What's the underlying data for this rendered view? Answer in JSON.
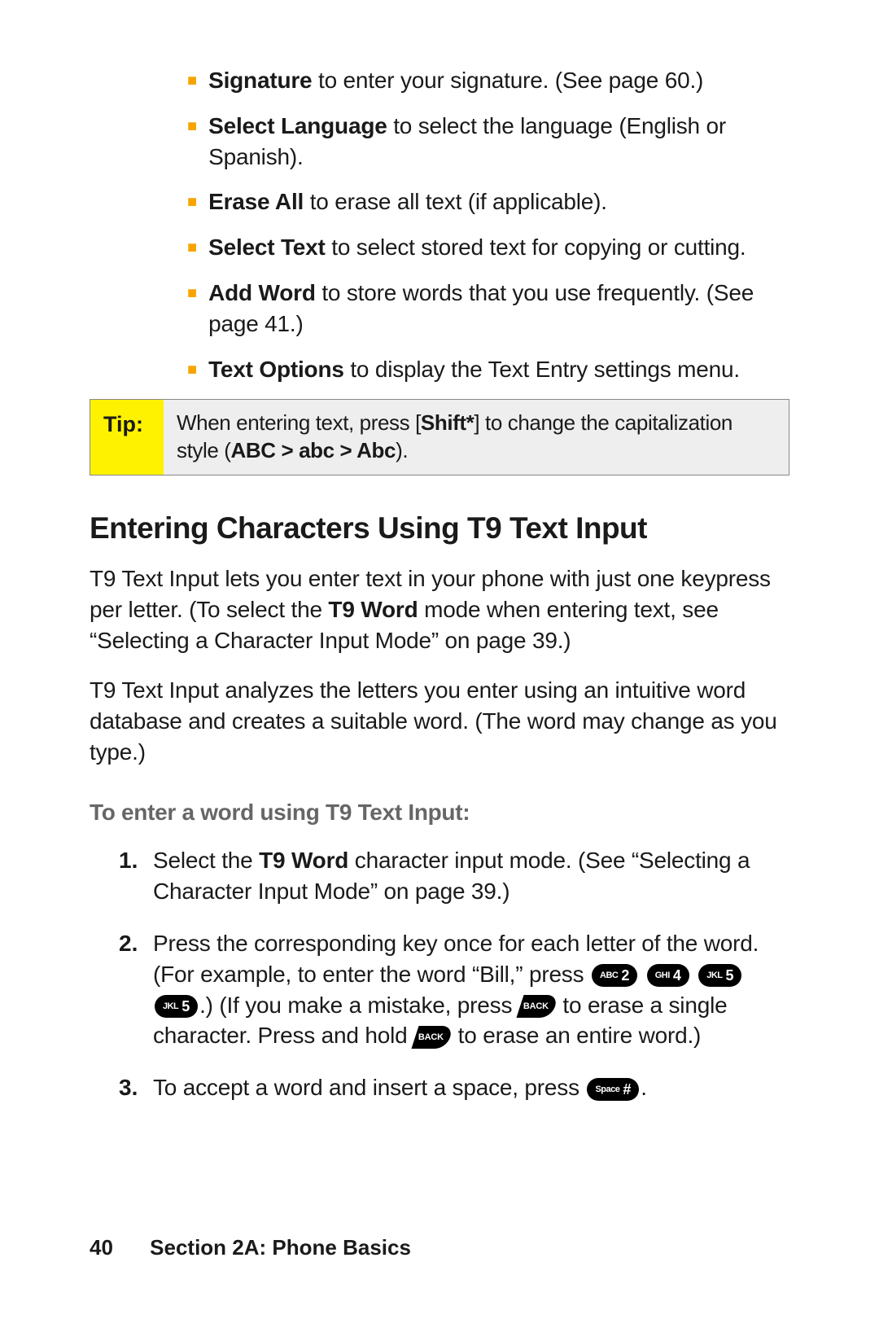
{
  "bullets": [
    {
      "bold": "Signature",
      "rest": " to enter your signature. (See page 60.)"
    },
    {
      "bold": "Select Language",
      "rest": " to select the language (English or Spanish)."
    },
    {
      "bold": "Erase All",
      "rest": " to erase all text (if applicable)."
    },
    {
      "bold": "Select Text",
      "rest": " to select stored text for copying or cutting."
    },
    {
      "bold": "Add Word",
      "rest": " to store words that you use frequently. (See page 41.)"
    },
    {
      "bold": "Text Options",
      "rest": " to display the Text Entry settings menu."
    }
  ],
  "tip": {
    "label": "Tip:",
    "pre": "When entering text, press [",
    "shift": "Shift*",
    "mid": "] to change the capitalization style (",
    "cycle": "ABC > abc > Abc",
    "post": ")."
  },
  "heading": "Entering Characters Using T9 Text Input",
  "para1": {
    "a": "T9 Text Input lets you enter text in your phone with just one keypress per letter. (To select the ",
    "b": "T9 Word",
    "c": " mode when entering text, see “Selecting a Character Input Mode” on page 39.)"
  },
  "para2": "T9 Text Input analyzes the letters you enter using an intuitive word database and creates a suitable word. (The word may change as you type.)",
  "subhead": "To enter a word using T9 Text Input:",
  "steps": {
    "s1": {
      "num": "1.",
      "a": "Select the ",
      "b": "T9 Word",
      "c": " character input mode. (See “Selecting a Character Input Mode” on page 39.)"
    },
    "s2": {
      "num": "2.",
      "a": "Press the corresponding key once for each letter of the word. (For example, to enter the word “Bill,” press ",
      "b": ".) (If you make a mistake, press ",
      "c": " to erase a single character. Press and hold ",
      "d": " to erase an entire word.)"
    },
    "s3": {
      "num": "3.",
      "a": "To accept a word and insert a space, press ",
      "b": "."
    }
  },
  "keys": {
    "abc2": {
      "small": "ABC",
      "big": "2"
    },
    "ghi4": {
      "small": "GHI",
      "big": "4"
    },
    "jkl5": {
      "small": "JKL",
      "big": "5"
    },
    "back": "BACK",
    "space": {
      "small": "Space",
      "big": "#"
    }
  },
  "footer": {
    "page": "40",
    "section": "Section 2A: Phone Basics"
  }
}
